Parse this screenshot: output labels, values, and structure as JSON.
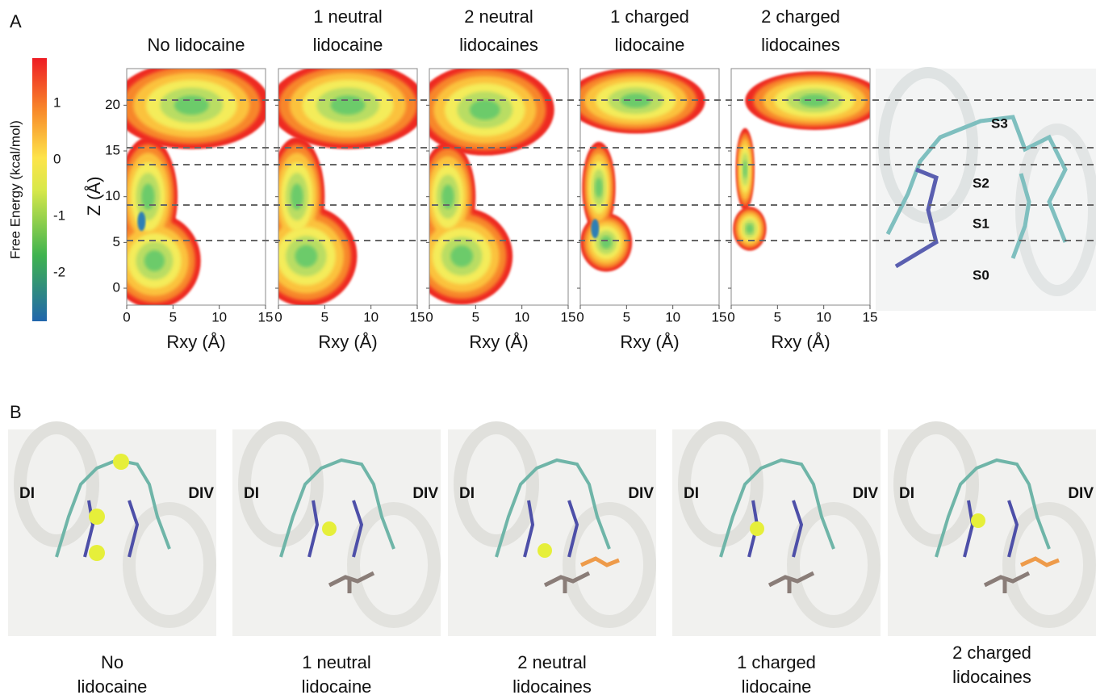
{
  "panel_a": {
    "label": "A",
    "colorbar": {
      "label": "Free Energy (kcal/mol)",
      "ticks": [
        1,
        0,
        -1,
        -2
      ]
    },
    "y_label": "Z (Å)",
    "x_label": "Rxy (Å)",
    "yticks": [
      0,
      5,
      10,
      15,
      20
    ],
    "xticks": [
      0,
      5,
      10,
      15
    ],
    "plots": [
      {
        "title_lines": [
          "No lidocaine"
        ]
      },
      {
        "title_lines": [
          "1 neutral",
          "lidocaine"
        ]
      },
      {
        "title_lines": [
          "2 neutral",
          "lidocaines"
        ]
      },
      {
        "title_lines": [
          "1 charged",
          "lidocaine"
        ]
      },
      {
        "title_lines": [
          "2 charged",
          "lidocaines"
        ]
      }
    ],
    "sites": [
      "S3",
      "S2",
      "S1",
      "S0"
    ]
  },
  "panel_b": {
    "label": "B",
    "sides": [
      "DI",
      "DIV"
    ],
    "snapshots": [
      {
        "caption_lines": [
          "No",
          "lidocaine"
        ]
      },
      {
        "caption_lines": [
          "1 neutral",
          "lidocaine"
        ]
      },
      {
        "caption_lines": [
          "2 neutral",
          "lidocaines"
        ]
      },
      {
        "caption_lines": [
          "1 charged",
          "lidocaine"
        ]
      },
      {
        "caption_lines": [
          "2 charged",
          "lidocaines"
        ]
      }
    ]
  }
}
